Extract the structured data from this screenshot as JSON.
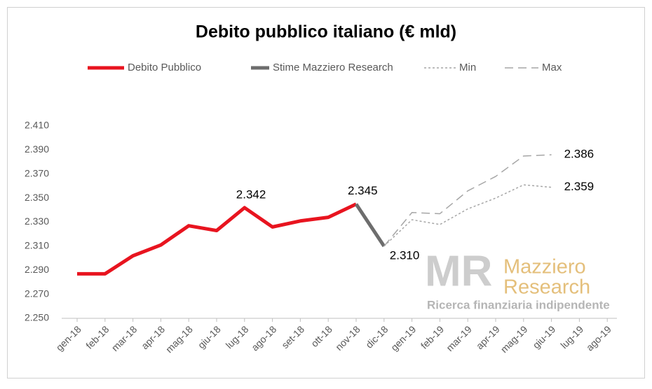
{
  "chart_data": {
    "type": "line",
    "title": "Debito pubblico italiano (€ mld)",
    "categories": [
      "gen-18",
      "feb-18",
      "mar-18",
      "apr-18",
      "mag-18",
      "giu-18",
      "lug-18",
      "ago-18",
      "set-18",
      "ott-18",
      "nov-18",
      "dic-18",
      "gen-19",
      "feb-19",
      "mar-19",
      "apr-19",
      "mag-19",
      "giu-19",
      "lug-19",
      "ago-19"
    ],
    "series": [
      {
        "name": "Debito Pubblico",
        "color": "#e8141f",
        "style": "solid",
        "width": 5,
        "values": [
          2287,
          2287,
          2302,
          2311,
          2327,
          2323,
          2342,
          2326,
          2331,
          2334,
          2345,
          null,
          null,
          null,
          null,
          null,
          null,
          null,
          null,
          null
        ],
        "value_labels": [
          null,
          null,
          null,
          null,
          null,
          null,
          "2.342",
          null,
          null,
          null,
          "2.345",
          null,
          null,
          null,
          null,
          null,
          null,
          null,
          null,
          null
        ]
      },
      {
        "name": "Stime Mazziero Research",
        "color": "#6d6d6d",
        "style": "solid",
        "width": 5,
        "values": [
          null,
          null,
          null,
          null,
          null,
          null,
          null,
          null,
          null,
          null,
          2345,
          2310,
          null,
          null,
          null,
          null,
          null,
          null,
          null,
          null
        ],
        "value_labels": [
          null,
          null,
          null,
          null,
          null,
          null,
          null,
          null,
          null,
          null,
          null,
          "2.310",
          null,
          null,
          null,
          null,
          null,
          null,
          null,
          null
        ]
      },
      {
        "name": "Min",
        "color": "#a6a6a6",
        "style": "dotted",
        "width": 1.5,
        "values": [
          null,
          null,
          null,
          null,
          null,
          null,
          null,
          null,
          null,
          null,
          null,
          2310,
          2332,
          2328,
          2341,
          2350,
          2361,
          2359,
          null,
          null
        ],
        "value_labels": [
          null,
          null,
          null,
          null,
          null,
          null,
          null,
          null,
          null,
          null,
          null,
          null,
          null,
          null,
          null,
          null,
          null,
          "2.359",
          null,
          null
        ]
      },
      {
        "name": "Max",
        "color": "#a6a6a6",
        "style": "dashed",
        "width": 1.5,
        "values": [
          null,
          null,
          null,
          null,
          null,
          null,
          null,
          null,
          null,
          null,
          null,
          2310,
          2338,
          2337,
          2356,
          2368,
          2385,
          2386,
          null,
          null
        ],
        "value_labels": [
          null,
          null,
          null,
          null,
          null,
          null,
          null,
          null,
          null,
          null,
          null,
          null,
          null,
          null,
          null,
          null,
          null,
          "2.386",
          null,
          null
        ]
      }
    ],
    "ylim": [
      2250,
      2410
    ],
    "yticks": [
      {
        "value": 2250,
        "label": "2.250"
      },
      {
        "value": 2270,
        "label": "2.270"
      },
      {
        "value": 2290,
        "label": "2.290"
      },
      {
        "value": 2310,
        "label": "2.310"
      },
      {
        "value": 2330,
        "label": "2.330"
      },
      {
        "value": 2350,
        "label": "2.350"
      },
      {
        "value": 2370,
        "label": "2.370"
      },
      {
        "value": 2390,
        "label": "2.390"
      },
      {
        "value": 2410,
        "label": "2.410"
      }
    ],
    "grid": false,
    "legend": "top",
    "watermark": {
      "logo": "MR",
      "name_line1": "Mazziero",
      "name_line2": "Research",
      "tagline": "Ricerca finanziaria indipendente"
    }
  }
}
